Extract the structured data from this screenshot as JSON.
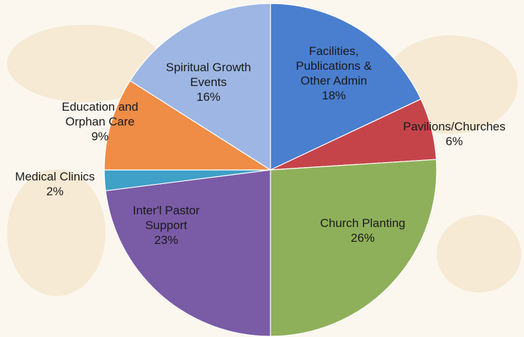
{
  "chart_data": {
    "type": "pie",
    "start_angle_deg": 0,
    "direction": "clockwise",
    "slices": [
      {
        "name": "Facilities, Publications & Other Admin",
        "label_lines": [
          "Facilities,",
          "Publications &",
          "Other Admin"
        ],
        "pct_label": "18%",
        "value": 18,
        "color": "#4a7ecf"
      },
      {
        "name": "Pavilions/Churches",
        "label_lines": [
          "Pavilions/Churches"
        ],
        "pct_label": "6%",
        "value": 6,
        "color": "#c5444a"
      },
      {
        "name": "Church Planting",
        "label_lines": [
          "Church Planting"
        ],
        "pct_label": "26%",
        "value": 26,
        "color": "#8fb05a"
      },
      {
        "name": "Inter'l Pastor Support",
        "label_lines": [
          "Inter'l Pastor",
          "Support"
        ],
        "pct_label": "23%",
        "value": 23,
        "color": "#7a5ba6"
      },
      {
        "name": "Medical Clinics",
        "label_lines": [
          "Medical Clinics"
        ],
        "pct_label": "2%",
        "value": 2,
        "color": "#3fa0c8"
      },
      {
        "name": "Education and Orphan Care",
        "label_lines": [
          "Education and",
          "Orphan Care"
        ],
        "pct_label": "9%",
        "value": 9,
        "color": "#ef8c46"
      },
      {
        "name": "Spiritual Growth Events",
        "label_lines": [
          "Spiritual Growth",
          "Events"
        ],
        "pct_label": "16%",
        "value": 16,
        "color": "#9db6e3"
      }
    ]
  }
}
